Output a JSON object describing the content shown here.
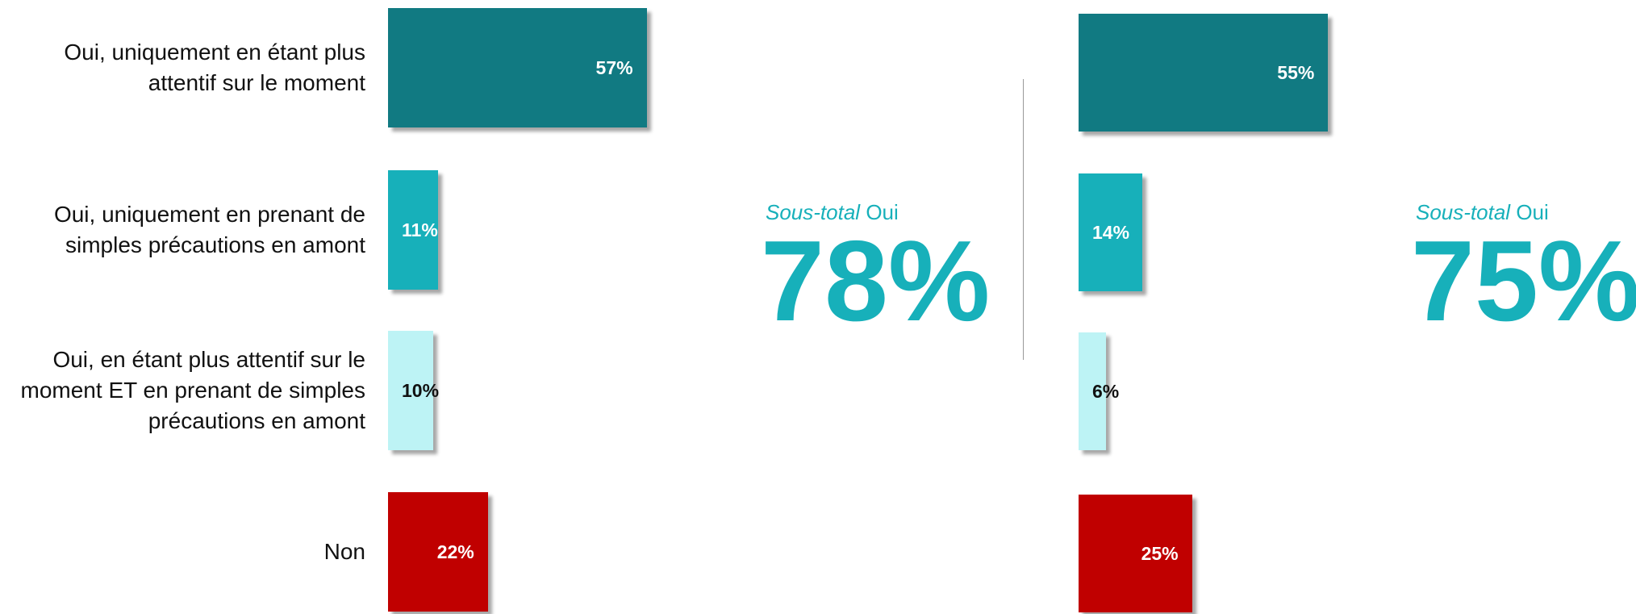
{
  "chart_data": [
    {
      "type": "bar",
      "orientation": "horizontal",
      "categories": [
        "Oui, uniquement en étant plus attentif sur le moment",
        "Oui, uniquement en prenant de simples précautions en amont",
        "Oui, en étant plus attentif sur le moment ET en prenant de simples précautions en amont",
        "Non"
      ],
      "values": [
        57,
        11,
        10,
        22
      ],
      "value_labels": [
        "57%",
        "11%",
        "10%",
        "22%"
      ],
      "colors": [
        "#117a82",
        "#17b0ba",
        "#bdf3f5",
        "#c00000"
      ],
      "subtotal_title": {
        "italic": "Sous-total",
        "text": "Oui"
      },
      "subtotal": {
        "value": 78,
        "label": "78%"
      }
    },
    {
      "type": "bar",
      "orientation": "horizontal",
      "values": [
        55,
        14,
        6,
        25
      ],
      "value_labels": [
        "55%",
        "14%",
        "6%",
        "25%"
      ],
      "colors": [
        "#117a82",
        "#17b0ba",
        "#bdf3f5",
        "#c00000"
      ],
      "subtotal_title": {
        "italic": "Sous-total",
        "text": "Oui"
      },
      "subtotal": {
        "value": 75,
        "label": "75%"
      }
    }
  ]
}
